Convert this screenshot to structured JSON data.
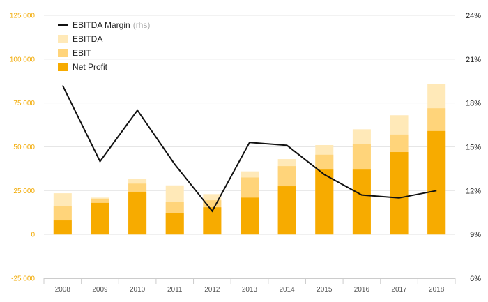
{
  "chart_data": {
    "type": "bar",
    "categories": [
      "2008",
      "2009",
      "2010",
      "2011",
      "2012",
      "2013",
      "2014",
      "2015",
      "2016",
      "2017",
      "2018"
    ],
    "series": [
      {
        "name": "EBITDA",
        "kind": "bar",
        "axis": "left",
        "color": "#ffe9b8",
        "values": [
          23500,
          21000,
          31500,
          28000,
          23000,
          36000,
          43000,
          51000,
          60000,
          68000,
          86000
        ]
      },
      {
        "name": "EBIT",
        "kind": "bar",
        "axis": "left",
        "color": "#ffd47a",
        "values": [
          16000,
          20000,
          29000,
          18500,
          19500,
          32500,
          39000,
          45500,
          51500,
          57000,
          72000
        ]
      },
      {
        "name": "Net Profit",
        "kind": "bar",
        "axis": "left",
        "color": "#f7ab00",
        "values": [
          8000,
          18000,
          24000,
          12000,
          15500,
          21000,
          27500,
          37000,
          37000,
          47000,
          59000
        ]
      },
      {
        "name": "EBITDA Margin",
        "name_note": "(rhs)",
        "kind": "line",
        "axis": "right",
        "color": "#111111",
        "values": [
          19.2,
          14.0,
          17.5,
          13.8,
          10.6,
          15.3,
          15.1,
          13.1,
          11.7,
          11.5,
          12.0
        ]
      }
    ],
    "yaxis_left": {
      "range": [
        -25000,
        125000
      ],
      "ticks": [
        -25000,
        0,
        25000,
        50000,
        75000,
        100000,
        125000
      ],
      "tick_labels": [
        "-25 000",
        "0",
        "25 000",
        "50 000",
        "75 000",
        "100 000",
        "125 000"
      ],
      "color": "#f2a900"
    },
    "yaxis_right": {
      "range": [
        6,
        24
      ],
      "ticks": [
        6,
        9,
        12,
        15,
        18,
        21,
        24
      ],
      "tick_labels": [
        "6%",
        "9%",
        "12%",
        "15%",
        "18%",
        "21%",
        "24%"
      ]
    },
    "legend_placement": "top-left",
    "grid": true,
    "grid_color": "#e6e6e6"
  }
}
